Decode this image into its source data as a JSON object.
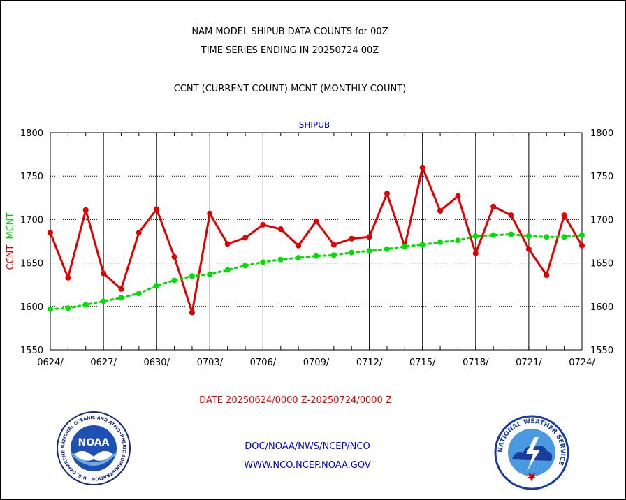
{
  "page": {
    "title_line1": "NAM MODEL SHIPUB DATA COUNTS for 00Z",
    "title_line2": "TIME SERIES ENDING IN 20250724 00Z",
    "subtitle": "CCNT (CURRENT COUNT) MCNT (MONTHLY COUNT)",
    "panel_label": "SHIPUB",
    "date_range": "DATE 20250624/0000 Z-20250724/0000 Z",
    "credit_line1": "DOC/NOAA/NWS/NCEP/NCO",
    "credit_line2": "WWW.NCO.NCEP.NOAA.GOV",
    "logos": {
      "left_name": "noaa-logo",
      "left_inner_text": "NOAA",
      "left_ring_text": "NATIONAL OCEANIC AND ATMOSPHERIC ADMINISTRATION · U.S. DEPARTMENT OF COMMERCE",
      "right_name": "nws-logo",
      "right_ring_text": "NATIONAL WEATHER SERVICE"
    }
  },
  "chart_data": {
    "type": "line",
    "ylabel_parts": [
      {
        "text": "CCNT",
        "color": "#e00000"
      },
      {
        "text": "MCNT",
        "color": "#00cc00"
      }
    ],
    "ylim": [
      1550,
      1800
    ],
    "yticks": [
      1550,
      1600,
      1650,
      1700,
      1750,
      1800
    ],
    "xlim": [
      0,
      30
    ],
    "xticks": [
      {
        "x": 0,
        "label": "0624/"
      },
      {
        "x": 3,
        "label": "0627/"
      },
      {
        "x": 6,
        "label": "0630/"
      },
      {
        "x": 9,
        "label": "0703/"
      },
      {
        "x": 12,
        "label": "0706/"
      },
      {
        "x": 15,
        "label": "0709/"
      },
      {
        "x": 18,
        "label": "0712/"
      },
      {
        "x": 21,
        "label": "0715/"
      },
      {
        "x": 24,
        "label": "0718/"
      },
      {
        "x": 27,
        "label": "0721/"
      },
      {
        "x": 30,
        "label": "0724/"
      }
    ],
    "grid": true,
    "series": [
      {
        "name": "CCNT",
        "color": "#e00000",
        "style": "solid",
        "values": [
          1685,
          1633,
          1711,
          1638,
          1620,
          1685,
          1712,
          1657,
          1593,
          1707,
          1672,
          1679,
          1694,
          1689,
          1670,
          1698,
          1671,
          1678,
          1680,
          1730,
          1669,
          1760,
          1710,
          1727,
          1661,
          1715,
          1705,
          1666,
          1636,
          1705,
          1670
        ]
      },
      {
        "name": "MCNT",
        "color": "#00dd00",
        "style": "dotted",
        "values": [
          1597,
          1598,
          1602,
          1606,
          1610,
          1615,
          1624,
          1630,
          1635,
          1637,
          1642,
          1647,
          1651,
          1654,
          1656,
          1658,
          1659,
          1662,
          1664,
          1666,
          1669,
          1671,
          1674,
          1676,
          1681,
          1682,
          1683,
          1681,
          1680,
          1680,
          1682
        ]
      }
    ]
  }
}
